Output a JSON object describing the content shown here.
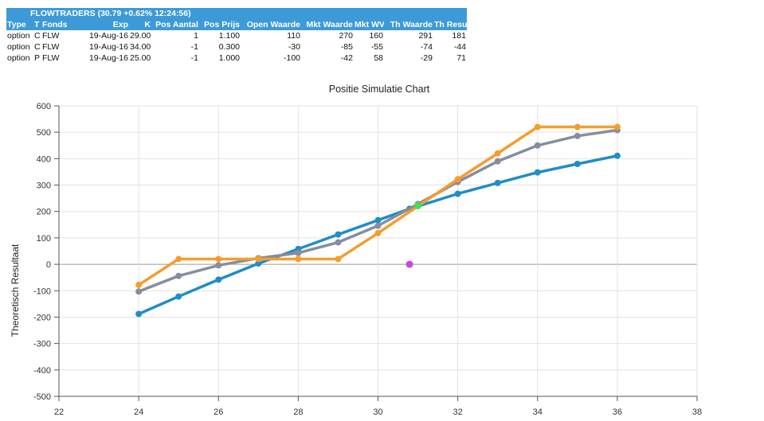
{
  "table": {
    "caption": "FLOWTRADERS (30.79 +0.62% 12:24:56)",
    "headers": [
      "Type",
      "T",
      "Fonds",
      "Exp",
      "K",
      "Pos Aantal",
      "Pos Prijs",
      "Open Waarde",
      "Mkt Waarde",
      "Mkt WV",
      "Th Waarde",
      "Th Result"
    ],
    "rows": [
      [
        "option",
        "C",
        "FLW",
        "19-Aug-16",
        "29.00",
        "1",
        "1.100",
        "110",
        "270",
        "160",
        "291",
        "181"
      ],
      [
        "option",
        "C",
        "FLW",
        "19-Aug-16",
        "34.00",
        "-1",
        "0.300",
        "-30",
        "-85",
        "-55",
        "-74",
        "-44"
      ],
      [
        "option",
        "P",
        "FLW",
        "19-Aug-16",
        "25.00",
        "-1",
        "1.000",
        "-100",
        "-42",
        "58",
        "-29",
        "71"
      ]
    ]
  },
  "chart_data": {
    "type": "line",
    "title": "Positie Simulatie Chart",
    "xlabel": "",
    "ylabel": "Theoretisch Resultaat",
    "xlim": [
      22,
      38
    ],
    "ylim": [
      -500,
      600
    ],
    "xticks": [
      22,
      24,
      26,
      28,
      30,
      32,
      34,
      36,
      38
    ],
    "yticks": [
      -500,
      -400,
      -300,
      -200,
      -100,
      0,
      100,
      200,
      300,
      400,
      500,
      600
    ],
    "grid": true,
    "series": [
      {
        "color": "#1f8dc8",
        "x": [
          24,
          25,
          26,
          27,
          28,
          29,
          30,
          30.79,
          32,
          33,
          34,
          35,
          36
        ],
        "y": [
          -188,
          -122,
          -58,
          3,
          58,
          113,
          167,
          210,
          267,
          308,
          348,
          380,
          411
        ]
      },
      {
        "color": "#868d9e",
        "x": [
          24,
          25,
          26,
          27,
          28,
          29,
          30,
          31,
          32,
          33,
          34,
          35,
          36
        ],
        "y": [
          -103,
          -44,
          -4,
          23,
          43,
          83,
          146,
          228,
          312,
          390,
          450,
          486,
          508
        ]
      },
      {
        "color": "#f59d2a",
        "x": [
          24,
          25,
          26,
          27,
          28,
          29,
          30,
          31,
          32,
          33,
          34,
          35,
          36
        ],
        "y": [
          -78,
          20,
          20,
          20,
          20,
          20,
          118,
          220,
          322,
          420,
          520,
          520,
          520
        ]
      }
    ],
    "markers": [
      {
        "x": 30.79,
        "y": 0,
        "color": "#c44bd9"
      },
      {
        "x": 31,
        "y": 222,
        "color": "#3fe05a"
      }
    ]
  }
}
